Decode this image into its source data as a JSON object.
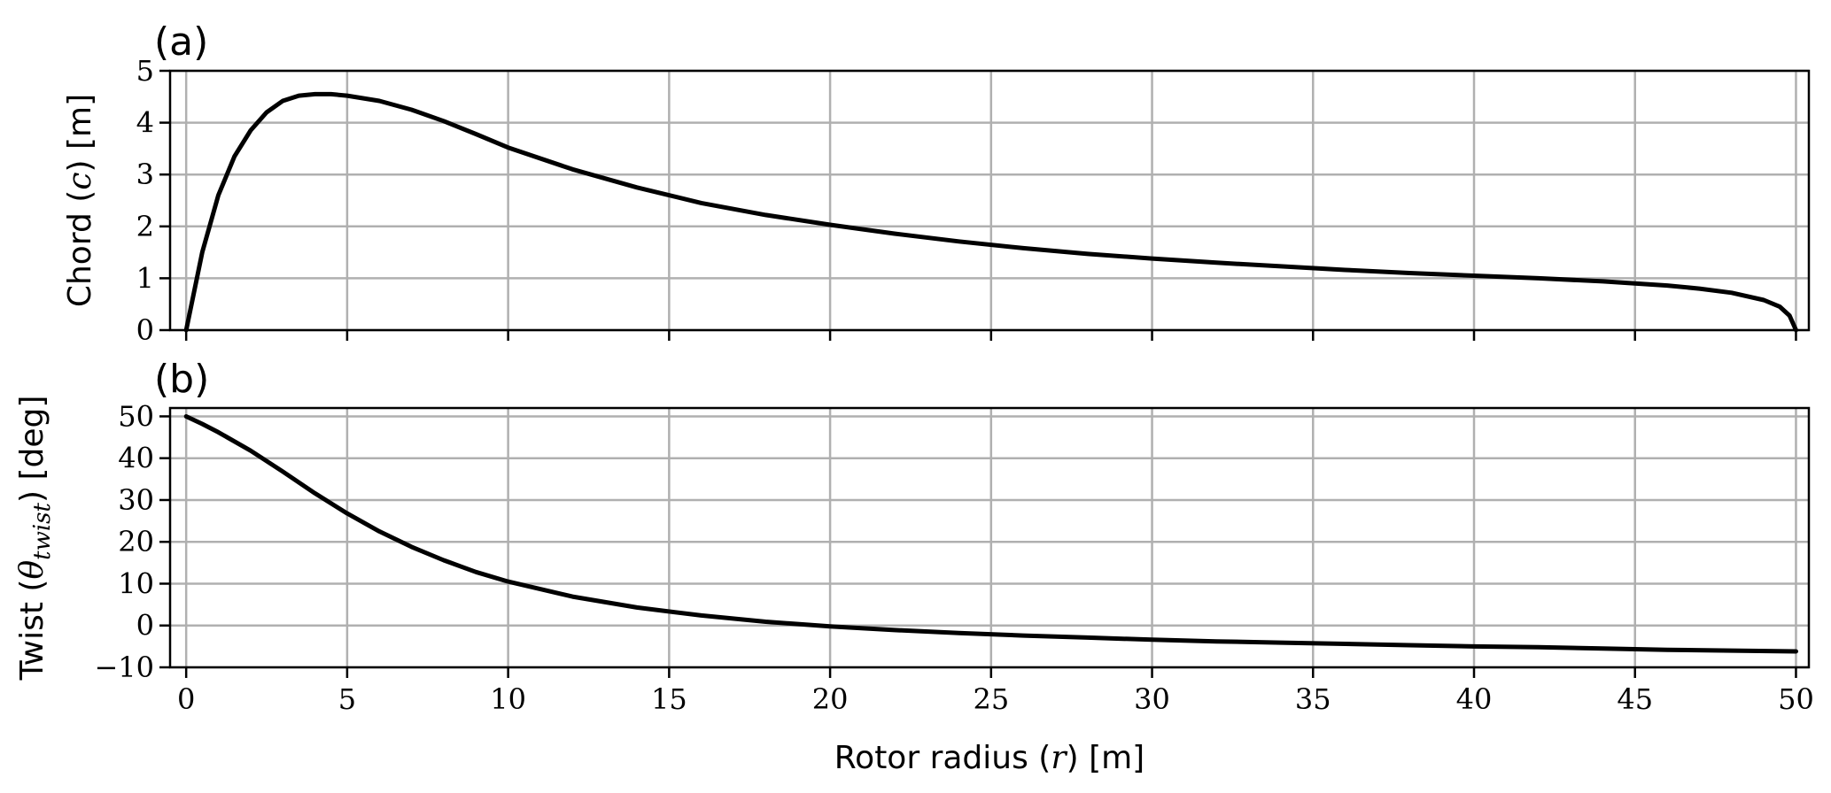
{
  "chart_data": [
    {
      "type": "line",
      "panel_label": "(a)",
      "ylabel": "Chord (c) [m]",
      "ylabel_parts": [
        "Chord (",
        "c",
        ") [m]"
      ],
      "xlim": [
        -0.5,
        50.4
      ],
      "ylim": [
        0,
        5
      ],
      "yticks": [
        0,
        1,
        2,
        3,
        4,
        5
      ],
      "yticklabels": [
        "0",
        "1",
        "2",
        "3",
        "4",
        "5"
      ],
      "xticks": [
        0,
        5,
        10,
        15,
        20,
        25,
        30,
        35,
        40,
        45,
        50
      ],
      "grid": true,
      "series": [
        {
          "x": [
            0,
            0.5,
            1,
            1.5,
            2,
            2.5,
            3,
            3.5,
            4,
            4.5,
            5,
            6,
            7,
            8,
            9,
            10,
            12,
            14,
            16,
            18,
            20,
            22,
            24,
            26,
            28,
            30,
            32,
            34,
            36,
            38,
            40,
            42,
            44,
            45,
            46,
            47,
            48,
            49,
            49.5,
            49.8,
            50
          ],
          "y": [
            0,
            1.5,
            2.6,
            3.35,
            3.85,
            4.2,
            4.42,
            4.52,
            4.55,
            4.55,
            4.52,
            4.42,
            4.25,
            4.03,
            3.78,
            3.52,
            3.1,
            2.75,
            2.45,
            2.22,
            2.03,
            1.86,
            1.71,
            1.58,
            1.47,
            1.38,
            1.3,
            1.23,
            1.16,
            1.1,
            1.05,
            1.0,
            0.94,
            0.9,
            0.86,
            0.8,
            0.72,
            0.58,
            0.45,
            0.28,
            0
          ]
        }
      ]
    },
    {
      "type": "line",
      "panel_label": "(b)",
      "ylabel": "Twist (θtwist) [deg]",
      "ylabel_parts": [
        "Twist (",
        "θ",
        "twist",
        ") [deg]"
      ],
      "xlabel": "Rotor radius (r) [m]",
      "xlabel_parts": [
        "Rotor radius (",
        "r",
        ") [m]"
      ],
      "xlim": [
        -0.5,
        50.4
      ],
      "ylim": [
        -10,
        52
      ],
      "yticks": [
        -10,
        0,
        10,
        20,
        30,
        40,
        50
      ],
      "yticklabels": [
        "−10",
        "0",
        "10",
        "20",
        "30",
        "40",
        "50"
      ],
      "xticks": [
        0,
        5,
        10,
        15,
        20,
        25,
        30,
        35,
        40,
        45,
        50
      ],
      "xticklabels": [
        "0",
        "5",
        "10",
        "15",
        "20",
        "25",
        "30",
        "35",
        "40",
        "45",
        "50"
      ],
      "grid": true,
      "series": [
        {
          "x": [
            0,
            0.5,
            1,
            2,
            3,
            4,
            5,
            6,
            7,
            8,
            9,
            10,
            12,
            14,
            16,
            18,
            20,
            22,
            24,
            26,
            28,
            30,
            32,
            34,
            36,
            38,
            40,
            42,
            44,
            46,
            48,
            50
          ],
          "y": [
            50,
            48.2,
            46.2,
            41.8,
            36.8,
            31.6,
            26.8,
            22.5,
            18.8,
            15.6,
            12.8,
            10.5,
            6.9,
            4.3,
            2.4,
            0.9,
            -0.2,
            -1.1,
            -1.8,
            -2.4,
            -2.9,
            -3.4,
            -3.8,
            -4.1,
            -4.4,
            -4.7,
            -5.0,
            -5.2,
            -5.5,
            -5.8,
            -6.0,
            -6.2
          ]
        }
      ]
    }
  ]
}
